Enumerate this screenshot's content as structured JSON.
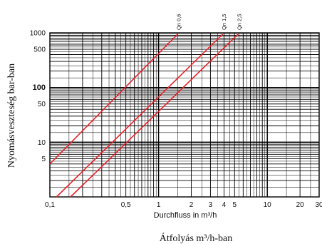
{
  "chart_data": {
    "type": "line",
    "x_scale": "log",
    "y_scale": "log",
    "xlim": [
      0.1,
      30
    ],
    "ylim": [
      1,
      1000
    ],
    "grid": true,
    "xlabel": "Durchfluss in m³/h",
    "xlabel_secondary": "Átfolyás m³/h-ban",
    "ylabel": "Nyomásveszteség bar-ban",
    "x_ticks": [
      {
        "value": 0.1,
        "label": "0,1"
      },
      {
        "value": 0.5,
        "label": "0,5"
      },
      {
        "value": 1,
        "label": "1"
      },
      {
        "value": 2,
        "label": "2"
      },
      {
        "value": 3,
        "label": "3"
      },
      {
        "value": 4,
        "label": "4"
      },
      {
        "value": 5,
        "label": "5"
      },
      {
        "value": 10,
        "label": "10"
      },
      {
        "value": 20,
        "label": "20"
      },
      {
        "value": 30,
        "label": "30"
      }
    ],
    "y_ticks": [
      {
        "value": 1000,
        "label": "1000",
        "bold": false
      },
      {
        "value": 500,
        "label": "500",
        "bold": false
      },
      {
        "value": 100,
        "label": "100",
        "bold": true
      },
      {
        "value": 50,
        "label": "50",
        "bold": false
      },
      {
        "value": 10,
        "label": "10",
        "bold": false
      },
      {
        "value": 5,
        "label": "5",
        "bold": false
      }
    ],
    "series": [
      {
        "name": "Qn 0,6",
        "color": "#e8202a",
        "points": [
          [
            0.1,
            4
          ],
          [
            1.5,
            950
          ]
        ]
      },
      {
        "name": "Qn 1,5",
        "color": "#e8202a",
        "points": [
          [
            0.115,
            1
          ],
          [
            3.9,
            950
          ]
        ]
      },
      {
        "name": "Qn 2,5",
        "color": "#e8202a",
        "points": [
          [
            0.155,
            1
          ],
          [
            5.4,
            950
          ]
        ]
      }
    ]
  }
}
